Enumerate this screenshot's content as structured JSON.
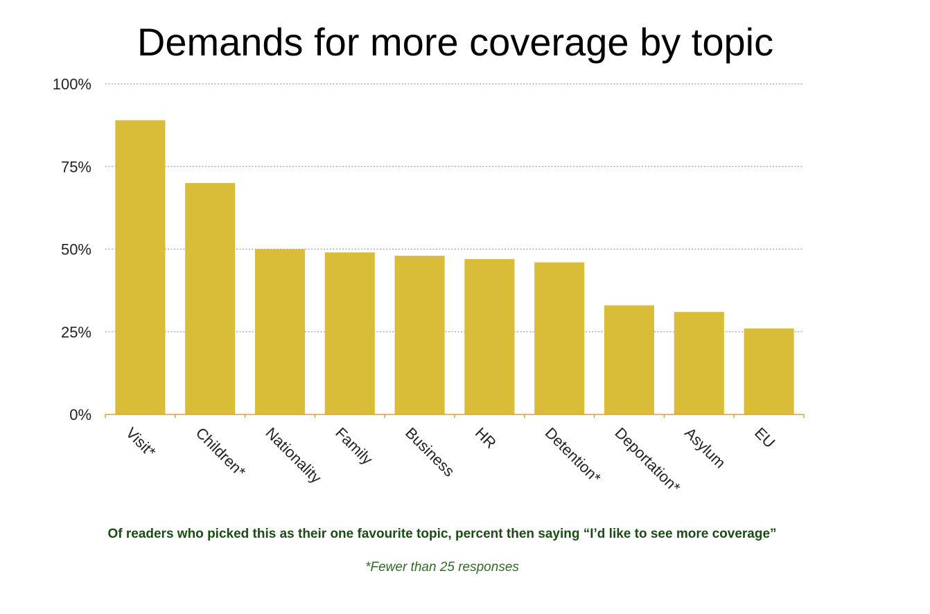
{
  "chart_data": {
    "type": "bar",
    "title": "Demands for more coverage by topic",
    "categories": [
      "Visit*",
      "Children*",
      "Nationality",
      "Family",
      "Business",
      "HR",
      "Detention*",
      "Deportation*",
      "Asylum",
      "EU"
    ],
    "values": [
      89,
      70,
      50,
      49,
      48,
      47,
      46,
      33,
      31,
      26
    ],
    "ylim": [
      0,
      100
    ],
    "yticks": [
      "0%",
      "25%",
      "50%",
      "75%",
      "100%"
    ],
    "ytick_values": [
      0,
      25,
      50,
      75,
      100
    ],
    "grid": true,
    "bar_color": "#d9bc37",
    "axis_color": "#d4a43a"
  },
  "caption": "Of readers who picked this as their one favourite topic, percent then saying “I’d like to see more coverage”",
  "footnote": "*Fewer than 25 responses"
}
